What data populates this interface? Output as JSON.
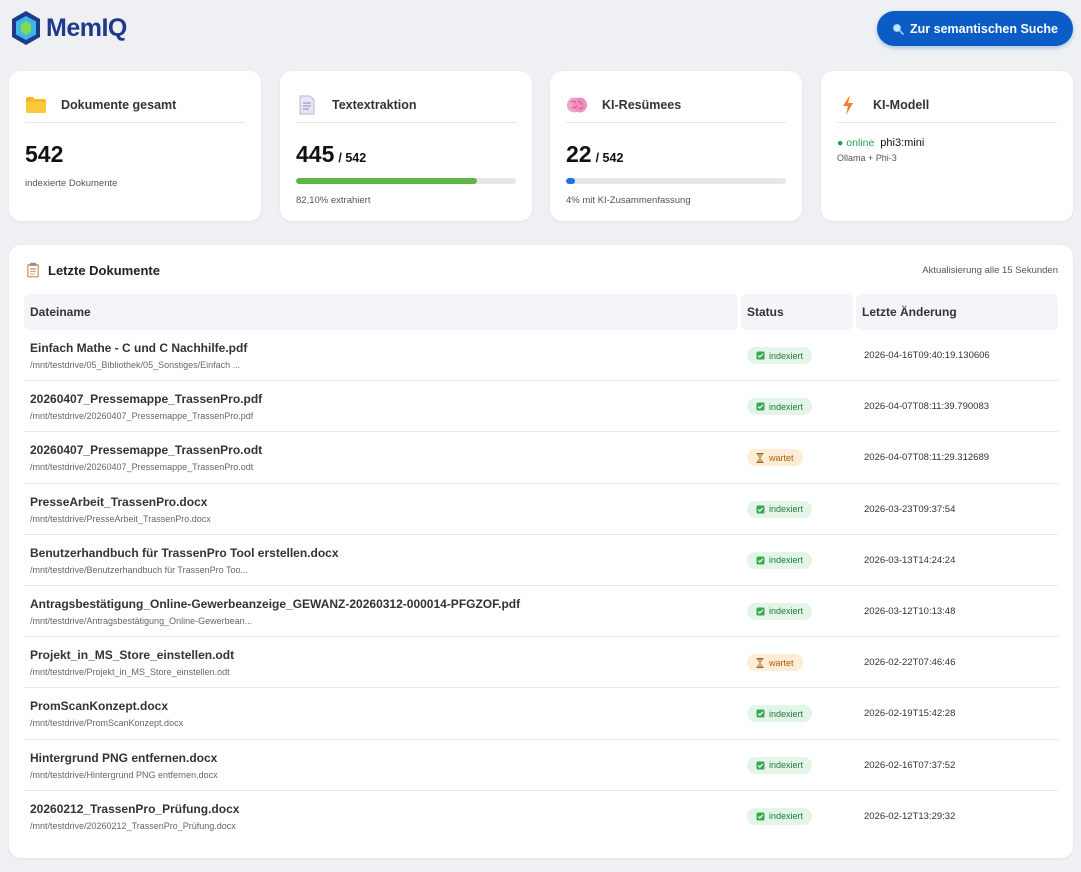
{
  "app": {
    "name_part1": "Mem",
    "name_part2": "IQ",
    "brand_color": "#1f3a8a",
    "accent_color": "#0b5cc4"
  },
  "header": {
    "search_button_label": "Zur semantischen Suche",
    "search_button_icon": "magnifier-icon"
  },
  "cards": {
    "documents": {
      "icon": "folder-icon",
      "title": "Dokumente gesamt",
      "value": "542",
      "subtitle": "indexierte Dokumente"
    },
    "extraction": {
      "icon": "document-icon",
      "title": "Textextraktion",
      "value": "445",
      "total": "/ 542",
      "progress_fraction": 0.821,
      "progress_color": "#5fb545",
      "subtitle": "82,10% extrahiert"
    },
    "summaries": {
      "icon": "brain-icon",
      "title": "KI-Resümees",
      "value": "22",
      "total": "/ 542",
      "progress_fraction": 0.04,
      "progress_color": "#1a73e8",
      "subtitle": "4% mit KI-Zusammenfassung"
    },
    "model": {
      "icon": "lightning-icon",
      "title": "KI-Modell",
      "status": "● online",
      "status_color": "#22a04b",
      "model_name": "phi3:mini",
      "subtitle": "Ollama + Phi-3"
    }
  },
  "recent": {
    "icon": "clipboard-icon",
    "title": "Letzte Dokumente",
    "refresh_note": "Aktualisierung alle 15 Sekunden",
    "columns": [
      "Dateiname",
      "Status",
      "Letzte Änderung"
    ],
    "rows": [
      {
        "name": "Einfach Mathe - C und C Nachhilfe.pdf",
        "path": "/mnt/testdrive/05_Bibliothek/05_Sonstiges/Einfach ...",
        "status": "indexiert",
        "status_type": "ok",
        "modified": "2026-04-16T09:40:19.130606"
      },
      {
        "name": "20260407_Pressemappe_TrassenPro.pdf",
        "path": "/mnt/testdrive/20260407_Pressemappe_TrassenPro.pdf",
        "status": "indexiert",
        "status_type": "ok",
        "modified": "2026-04-07T08:11:39.790083"
      },
      {
        "name": "20260407_Pressemappe_TrassenPro.odt",
        "path": "/mnt/testdrive/20260407_Pressemappe_TrassenPro.odt",
        "status": "wartet",
        "status_type": "wait",
        "modified": "2026-04-07T08:11:29.312689"
      },
      {
        "name": "PresseArbeit_TrassenPro.docx",
        "path": "/mnt/testdrive/PresseArbeit_TrassenPro.docx",
        "status": "indexiert",
        "status_type": "ok",
        "modified": "2026-03-23T09:37:54"
      },
      {
        "name": "Benutzerhandbuch für TrassenPro Tool erstellen.docx",
        "path": "/mnt/testdrive/Benutzerhandbuch für TrassenPro Too...",
        "status": "indexiert",
        "status_type": "ok",
        "modified": "2026-03-13T14:24:24"
      },
      {
        "name": "Antragsbestätigung_Online-Gewerbeanzeige_GEWANZ-20260312-000014-PFGZOF.pdf",
        "path": "/mnt/testdrive/Antragsbestätigung_Online-Gewerbean...",
        "status": "indexiert",
        "status_type": "ok",
        "modified": "2026-03-12T10:13:48"
      },
      {
        "name": "Projekt_in_MS_Store_einstellen.odt",
        "path": "/mnt/testdrive/Projekt_in_MS_Store_einstellen.odt",
        "status": "wartet",
        "status_type": "wait",
        "modified": "2026-02-22T07:46:46"
      },
      {
        "name": "PromScanKonzept.docx",
        "path": "/mnt/testdrive/PromScanKonzept.docx",
        "status": "indexiert",
        "status_type": "ok",
        "modified": "2026-02-19T15:42:28"
      },
      {
        "name": "Hintergrund PNG entfernen.docx",
        "path": "/mnt/testdrive/Hintergrund PNG entfernen.docx",
        "status": "indexiert",
        "status_type": "ok",
        "modified": "2026-02-16T07:37:52"
      },
      {
        "name": "20260212_TrassenPro_Prüfung.docx",
        "path": "/mnt/testdrive/20260212_TrassenPro_Prüfung.docx",
        "status": "indexiert",
        "status_type": "ok",
        "modified": "2026-02-12T13:29:32"
      }
    ]
  }
}
